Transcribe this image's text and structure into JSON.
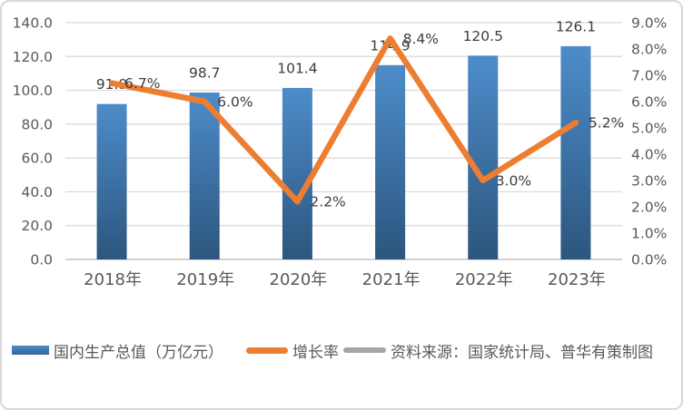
{
  "chart_data": {
    "type": "bar",
    "subtype": "combo-bar-line",
    "categories": [
      "2018年",
      "2019年",
      "2020年",
      "2021年",
      "2022年",
      "2023年"
    ],
    "series": [
      {
        "name": "国内生产总值（万亿元）",
        "type": "bar",
        "axis": "left",
        "values": [
          91.9,
          98.7,
          101.4,
          114.9,
          120.5,
          126.1
        ],
        "labels": [
          "91.9",
          "98.7",
          "101.4",
          "114.9",
          "120.5",
          "126.1"
        ],
        "color_top": "#4d8cca",
        "color_bottom": "#2c567e"
      },
      {
        "name": "增长率",
        "type": "line",
        "axis": "right",
        "values": [
          6.7,
          6.0,
          2.2,
          8.4,
          3.0,
          5.2
        ],
        "labels": [
          "6.7%",
          "6.0%",
          "2.2%",
          "8.4%",
          "3.0%",
          "5.2%"
        ],
        "color": "#ed7d31"
      }
    ],
    "left_axis": {
      "min": 0,
      "max": 140,
      "step": 20,
      "tick_labels": [
        "0.0",
        "20.0",
        "40.0",
        "60.0",
        "80.0",
        "100.0",
        "120.0",
        "140.0"
      ]
    },
    "right_axis": {
      "min": 0,
      "max": 9,
      "step": 1,
      "tick_labels": [
        "0.0%",
        "1.0%",
        "2.0%",
        "3.0%",
        "4.0%",
        "5.0%",
        "6.0%",
        "7.0%",
        "8.0%",
        "9.0%"
      ]
    },
    "grid": true,
    "gridline_color": "#d9d9d9",
    "axis_line_color": "#c3c3c3",
    "legend_position": "bottom",
    "title": ""
  },
  "legend": {
    "items": [
      {
        "label": "国内生产总值（万亿元）",
        "swatch": "bar-swatch",
        "color": "#3c76a9"
      },
      {
        "label": "增长率",
        "swatch": "line-swatch",
        "color": "#ed7d31"
      },
      {
        "label": "资料来源：国家统计局、普华有策制图",
        "swatch": "line-swatch",
        "color": "#a6a6a6"
      }
    ]
  },
  "colors": {
    "bar_top": "#4d8cca",
    "bar_bottom": "#2c567e",
    "line": "#ed7d31",
    "gridline": "#d9d9d9",
    "axis_text": "#595959",
    "data_label_text": "#3d3d3d",
    "source_swatch": "#a6a6a6",
    "frame_border": "#d8d8d8"
  }
}
